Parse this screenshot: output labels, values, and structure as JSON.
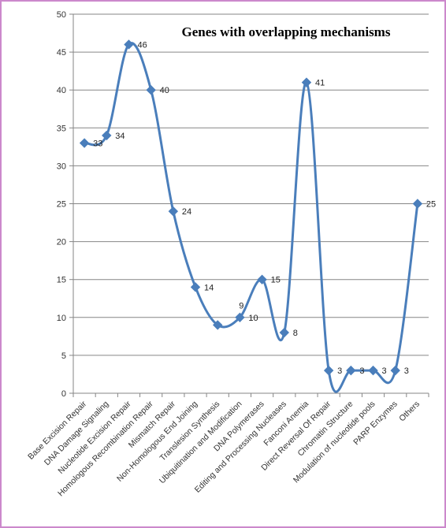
{
  "chart_data": {
    "type": "line",
    "title": "Genes with overlapping mechanisms",
    "categories": [
      "Base Excision  Repair",
      "DNA Damage Signaling",
      "Nucleotide  Excision  Repair",
      "Homologous  Recombination  Repair",
      "Mismatch Repair",
      "Non-Homologous  End Joining",
      "Translesion Synthesis",
      "Ubiquitination  and  Modification",
      "DNA Polymerases",
      "Editing  and Processing  Nucleases",
      "Fanconi Anemia",
      "Direct Reversal Of Repair",
      "Chromatin Structure",
      "Modulation  of nucleotide  pools",
      "PARP Enzymes",
      "Others"
    ],
    "values": [
      33,
      34,
      46,
      40,
      24,
      14,
      9,
      10,
      15,
      8,
      41,
      3,
      3,
      3,
      3,
      25
    ],
    "data_labels": [
      "33",
      "34",
      "46",
      "40",
      "24",
      "14",
      "",
      "10",
      "15",
      "8",
      "41",
      "3",
      "3",
      "3",
      "3",
      "25"
    ],
    "extra_labels": [
      {
        "text": "9",
        "category_index": 6
      }
    ],
    "yticks": [
      "0",
      "5",
      "10",
      "15",
      "20",
      "25",
      "30",
      "35",
      "40",
      "45",
      "50"
    ],
    "ylim": [
      0,
      50
    ],
    "grid": true,
    "legend": "none",
    "smoothed": true,
    "colors": {
      "series": "#4a7ebb",
      "grid": "#868686",
      "axis": "#868686",
      "frame": "#cc88cc"
    }
  }
}
